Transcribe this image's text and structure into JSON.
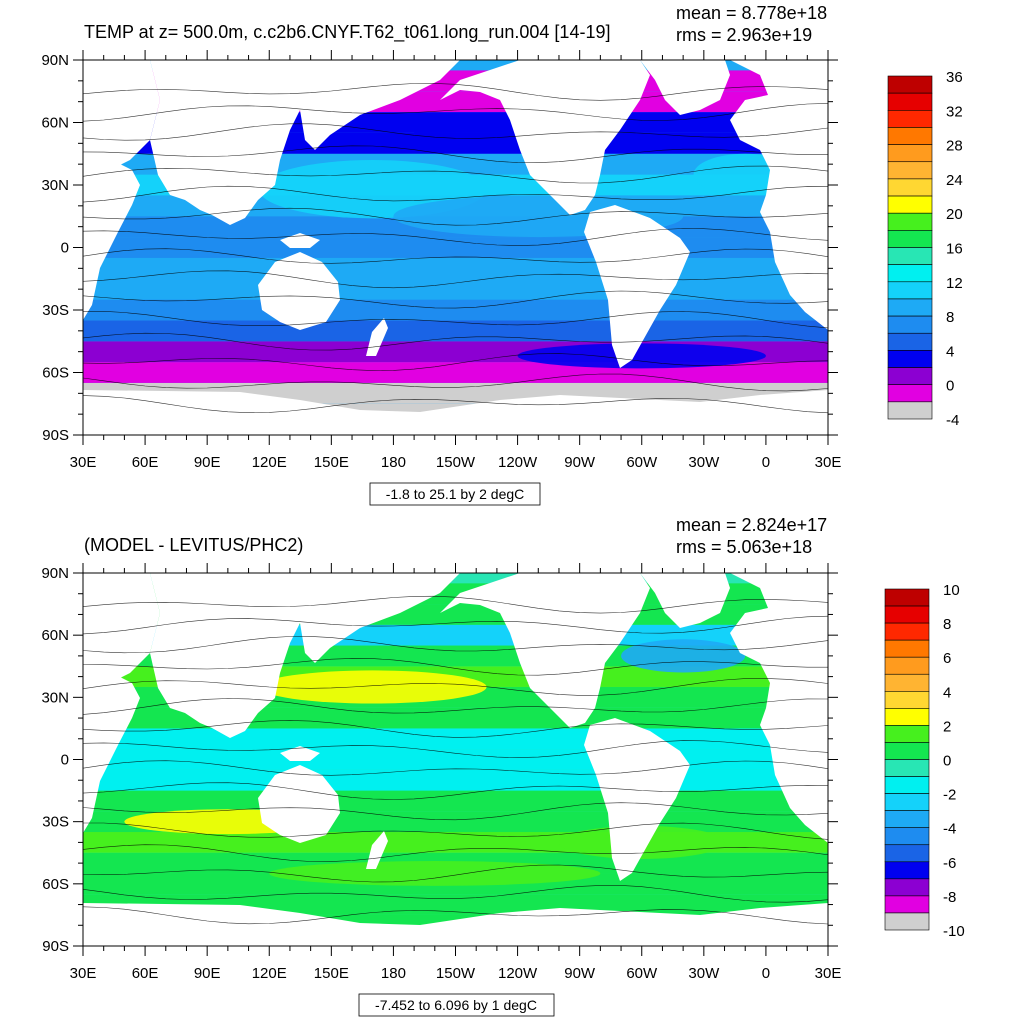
{
  "colors": {
    "temp_scale": [
      "#6e6e6e",
      "#cfcfcf",
      "#e100e1",
      "#8c00d2",
      "#0000f0",
      "#1a64e6",
      "#1e8cf0",
      "#1eaaf5",
      "#14d2fa",
      "#00f0f0",
      "#28e6b4",
      "#14e650",
      "#46f01e",
      "#ffff00",
      "#ffd732",
      "#ffb432",
      "#ff9b1e",
      "#ff7800",
      "#ff2800",
      "#e60000",
      "#be0000"
    ],
    "diff_scale": [
      "#6e6e6e",
      "#cfcfcf",
      "#e100e1",
      "#8c00d2",
      "#0000f0",
      "#1a64e6",
      "#1e8cf0",
      "#1eaaf5",
      "#14d2fa",
      "#00f0f0",
      "#28e6b4",
      "#14e650",
      "#46f01e",
      "#ffff00",
      "#ffd732",
      "#ffb432",
      "#ff9b1e",
      "#ff7800",
      "#ff2800",
      "#e60000",
      "#be0000"
    ],
    "land": "#ffffff",
    "contour": "#000000"
  },
  "chart_data": [
    {
      "type": "heatmap",
      "title": "TEMP at z= 500.0m, c.c2b6.CNYF.T62_t061.long_run.004 [14-19]",
      "stats": {
        "mean": "mean = 8.778e+18",
        "rms": "rms = 2.963e+19"
      },
      "x_ticks": [
        "30E",
        "60E",
        "90E",
        "120E",
        "150E",
        "180",
        "150W",
        "120W",
        "90W",
        "60W",
        "30W",
        "0",
        "30E"
      ],
      "y_ticks": [
        "90N",
        "60N",
        "30N",
        "0",
        "30S",
        "60S",
        "90S"
      ],
      "xlim": [
        30,
        390
      ],
      "ylim": [
        -90,
        90
      ],
      "contour_info": "-1.8 to 25.1 by 2 degC",
      "colorbar": {
        "labels": [
          "36",
          "32",
          "28",
          "24",
          "20",
          "16",
          "12",
          "8",
          "4",
          "0",
          "-4"
        ],
        "range": [
          -4,
          36
        ],
        "step": 2
      },
      "field_description_zonal": {
        "lat": [
          -80,
          -70,
          -60,
          -50,
          -40,
          -30,
          -20,
          -10,
          0,
          10,
          20,
          30,
          40,
          50,
          60,
          70,
          80
        ],
        "value": [
          -1,
          -1,
          0,
          3,
          7,
          9,
          10,
          10,
          9,
          9,
          11,
          12,
          10,
          5,
          4,
          1,
          0
        ]
      }
    },
    {
      "type": "heatmap",
      "title": "(MODEL - LEVITUS/PHC2)",
      "stats": {
        "mean": "mean = 2.824e+17",
        "rms": "rms = 5.063e+18"
      },
      "x_ticks": [
        "30E",
        "60E",
        "90E",
        "120E",
        "150E",
        "180",
        "150W",
        "120W",
        "90W",
        "60W",
        "30W",
        "0",
        "30E"
      ],
      "y_ticks": [
        "90N",
        "60N",
        "30N",
        "0",
        "30S",
        "60S",
        "90S"
      ],
      "xlim": [
        30,
        390
      ],
      "ylim": [
        -90,
        90
      ],
      "contour_info": "-7.452 to 6.096 by 1 degC",
      "colorbar": {
        "labels": [
          "10",
          "8",
          "6",
          "4",
          "2",
          "0",
          "-2",
          "-4",
          "-6",
          "-8",
          "-10"
        ],
        "range": [
          -10,
          10
        ],
        "step": 1
      },
      "field_description_zonal": {
        "lat": [
          -80,
          -70,
          -60,
          -50,
          -40,
          -30,
          -20,
          -10,
          0,
          10,
          20,
          30,
          40,
          50,
          60,
          70,
          80
        ],
        "value": [
          0,
          0,
          0.5,
          0.5,
          1,
          0.5,
          0,
          -0.5,
          -0.5,
          -0.5,
          0,
          0.5,
          1,
          0.5,
          -2,
          0,
          0
        ]
      }
    }
  ]
}
